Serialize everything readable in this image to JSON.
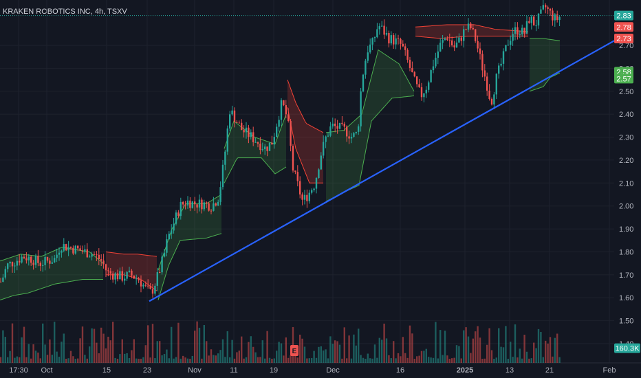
{
  "header": {
    "title": "KRAKEN ROBOTICS INC, 4h, TSXV"
  },
  "colors": {
    "background": "#131722",
    "grid": "#1e222d",
    "up": "#26a69a",
    "down": "#ef5350",
    "trendline": "#2962ff",
    "up_band": "#4caf50",
    "down_band": "#f44336",
    "axis_text": "#b2b5be"
  },
  "chart_data": {
    "type": "candlestick",
    "title": "KRAKEN ROBOTICS INC, 4h, TSXV",
    "ylim": [
      1.35,
      2.88
    ],
    "y_ticks": [
      "2.70",
      "2.60",
      "2.50",
      "2.40",
      "2.30",
      "2.20",
      "2.10",
      "2.00",
      "1.90",
      "1.80",
      "1.70",
      "1.60",
      "1.50",
      "1.40"
    ],
    "x_ticks": [
      {
        "label": "17:30",
        "pos": 27
      },
      {
        "label": "Oct",
        "pos": 68
      },
      {
        "label": "15",
        "pos": 155
      },
      {
        "label": "23",
        "pos": 214
      },
      {
        "label": "Nov",
        "pos": 283
      },
      {
        "label": "11",
        "pos": 340
      },
      {
        "label": "19",
        "pos": 398
      },
      {
        "label": "Dec",
        "pos": 484
      },
      {
        "label": "16",
        "pos": 582
      },
      {
        "label": "2025",
        "pos": 676,
        "bold": true
      },
      {
        "label": "13",
        "pos": 741
      },
      {
        "label": "21",
        "pos": 799
      },
      {
        "label": "Feb",
        "pos": 886
      }
    ],
    "price_tags": [
      {
        "label": "2.83",
        "value": 2.83,
        "color": "#26a69a"
      },
      {
        "label": "2.78",
        "value": 2.78,
        "color": "#ef5350"
      },
      {
        "label": "2.73",
        "value": 2.73,
        "color": "#ef5350"
      },
      {
        "label": "2.58",
        "value": 2.585,
        "color": "#4caf50"
      },
      {
        "label": "2.57",
        "value": 2.555,
        "color": "#4caf50"
      },
      {
        "label": "160.3K",
        "value": 1.38,
        "color": "#26a69a"
      }
    ],
    "last_price_line": 2.83,
    "trendline": {
      "x1": 217,
      "y1": 1.585,
      "x2": 893,
      "y2": 2.72
    },
    "volume_label": "160.3K",
    "anchors": [
      [
        2,
        1.67
      ],
      [
        10,
        1.74
      ],
      [
        22,
        1.76
      ],
      [
        34,
        1.78
      ],
      [
        46,
        1.77
      ],
      [
        58,
        1.75
      ],
      [
        70,
        1.76
      ],
      [
        80,
        1.77
      ],
      [
        88,
        1.83
      ],
      [
        100,
        1.82
      ],
      [
        112,
        1.81
      ],
      [
        124,
        1.8
      ],
      [
        136,
        1.79
      ],
      [
        148,
        1.76
      ],
      [
        156,
        1.71
      ],
      [
        166,
        1.7
      ],
      [
        178,
        1.69
      ],
      [
        190,
        1.7
      ],
      [
        202,
        1.68
      ],
      [
        212,
        1.64
      ],
      [
        220,
        1.62
      ],
      [
        230,
        1.7
      ],
      [
        238,
        1.78
      ],
      [
        244,
        1.86
      ],
      [
        252,
        1.92
      ],
      [
        262,
        2.0
      ],
      [
        272,
        2.02
      ],
      [
        284,
        2.01
      ],
      [
        296,
        2.01
      ],
      [
        308,
        2.0
      ],
      [
        318,
        2.04
      ],
      [
        326,
        2.2
      ],
      [
        334,
        2.42
      ],
      [
        342,
        2.38
      ],
      [
        352,
        2.33
      ],
      [
        362,
        2.31
      ],
      [
        374,
        2.28
      ],
      [
        386,
        2.25
      ],
      [
        396,
        2.28
      ],
      [
        404,
        2.38
      ],
      [
        410,
        2.45
      ],
      [
        418,
        2.38
      ],
      [
        426,
        2.16
      ],
      [
        432,
        2.1
      ],
      [
        440,
        2.02
      ],
      [
        448,
        2.05
      ],
      [
        458,
        2.1
      ],
      [
        466,
        2.22
      ],
      [
        474,
        2.3
      ],
      [
        482,
        2.35
      ],
      [
        492,
        2.34
      ],
      [
        502,
        2.33
      ],
      [
        512,
        2.3
      ],
      [
        520,
        2.32
      ],
      [
        526,
        2.55
      ],
      [
        534,
        2.68
      ],
      [
        542,
        2.71
      ],
      [
        550,
        2.79
      ],
      [
        558,
        2.76
      ],
      [
        566,
        2.73
      ],
      [
        574,
        2.72
      ],
      [
        584,
        2.7
      ],
      [
        594,
        2.62
      ],
      [
        604,
        2.53
      ],
      [
        612,
        2.48
      ],
      [
        620,
        2.52
      ],
      [
        630,
        2.62
      ],
      [
        640,
        2.7
      ],
      [
        650,
        2.74
      ],
      [
        660,
        2.69
      ],
      [
        668,
        2.72
      ],
      [
        676,
        2.77
      ],
      [
        684,
        2.78
      ],
      [
        692,
        2.72
      ],
      [
        700,
        2.62
      ],
      [
        708,
        2.53
      ],
      [
        714,
        2.45
      ],
      [
        722,
        2.56
      ],
      [
        730,
        2.63
      ],
      [
        738,
        2.71
      ],
      [
        746,
        2.76
      ],
      [
        754,
        2.77
      ],
      [
        762,
        2.75
      ],
      [
        770,
        2.82
      ],
      [
        778,
        2.79
      ],
      [
        786,
        2.83
      ],
      [
        792,
        2.87
      ],
      [
        800,
        2.84
      ],
      [
        808,
        2.81
      ],
      [
        816,
        2.83
      ]
    ],
    "bands": [
      {
        "type": "up",
        "x_start": 0,
        "x_end": 150,
        "upper": [
          [
            0,
            1.76
          ],
          [
            30,
            1.79
          ],
          [
            60,
            1.78
          ],
          [
            90,
            1.82
          ],
          [
            130,
            1.8
          ],
          [
            150,
            1.75
          ]
        ],
        "lower": [
          [
            0,
            1.59
          ],
          [
            20,
            1.61
          ],
          [
            40,
            1.62
          ],
          [
            60,
            1.64
          ],
          [
            80,
            1.66
          ],
          [
            100,
            1.67
          ],
          [
            120,
            1.68
          ],
          [
            150,
            1.68
          ]
        ]
      },
      {
        "type": "down",
        "x_start": 154,
        "x_end": 228,
        "upper": [
          [
            154,
            1.8
          ],
          [
            180,
            1.79
          ],
          [
            200,
            1.79
          ],
          [
            228,
            1.78
          ]
        ],
        "lower": [
          [
            154,
            1.7
          ],
          [
            180,
            1.7
          ],
          [
            205,
            1.68
          ],
          [
            228,
            1.63
          ]
        ]
      },
      {
        "type": "up",
        "x_start": 230,
        "x_end": 322,
        "upper": [
          [
            230,
            1.72
          ],
          [
            250,
            1.9
          ],
          [
            270,
            2.01
          ],
          [
            300,
            2.01
          ],
          [
            322,
            2.05
          ]
        ],
        "lower": [
          [
            230,
            1.59
          ],
          [
            245,
            1.74
          ],
          [
            262,
            1.85
          ],
          [
            300,
            1.86
          ],
          [
            322,
            1.88
          ]
        ]
      },
      {
        "type": "up",
        "x_start": 326,
        "x_end": 416,
        "upper": [
          [
            326,
            2.25
          ],
          [
            340,
            2.37
          ],
          [
            370,
            2.3
          ],
          [
            400,
            2.27
          ],
          [
            416,
            2.4
          ]
        ],
        "lower": [
          [
            326,
            2.1
          ],
          [
            345,
            2.21
          ],
          [
            380,
            2.21
          ],
          [
            400,
            2.14
          ],
          [
            416,
            2.17
          ]
        ]
      },
      {
        "type": "down",
        "x_start": 418,
        "x_end": 470,
        "upper": [
          [
            418,
            2.55
          ],
          [
            430,
            2.45
          ],
          [
            445,
            2.36
          ],
          [
            470,
            2.32
          ]
        ],
        "lower": [
          [
            418,
            2.43
          ],
          [
            430,
            2.25
          ],
          [
            450,
            2.1
          ],
          [
            470,
            2.1
          ]
        ]
      },
      {
        "type": "up",
        "x_start": 474,
        "x_end": 602,
        "upper": [
          [
            474,
            2.32
          ],
          [
            500,
            2.33
          ],
          [
            526,
            2.4
          ],
          [
            550,
            2.68
          ],
          [
            580,
            2.62
          ],
          [
            602,
            2.5
          ]
        ],
        "lower": [
          [
            474,
            2.02
          ],
          [
            500,
            2.06
          ],
          [
            522,
            2.09
          ],
          [
            540,
            2.37
          ],
          [
            570,
            2.47
          ],
          [
            602,
            2.48
          ]
        ]
      },
      {
        "type": "down",
        "x_start": 604,
        "x_end": 768,
        "upper": [
          [
            604,
            2.78
          ],
          [
            650,
            2.79
          ],
          [
            690,
            2.79
          ],
          [
            720,
            2.77
          ],
          [
            768,
            2.76
          ]
        ],
        "lower": [
          [
            604,
            2.74
          ],
          [
            640,
            2.73
          ],
          [
            680,
            2.74
          ],
          [
            720,
            2.74
          ],
          [
            768,
            2.74
          ]
        ]
      },
      {
        "type": "up",
        "x_start": 770,
        "x_end": 814,
        "upper": [
          [
            770,
            2.73
          ],
          [
            790,
            2.73
          ],
          [
            814,
            2.72
          ]
        ],
        "lower": [
          [
            770,
            2.5
          ],
          [
            790,
            2.52
          ],
          [
            800,
            2.56
          ],
          [
            814,
            2.58
          ]
        ]
      }
    ]
  }
}
